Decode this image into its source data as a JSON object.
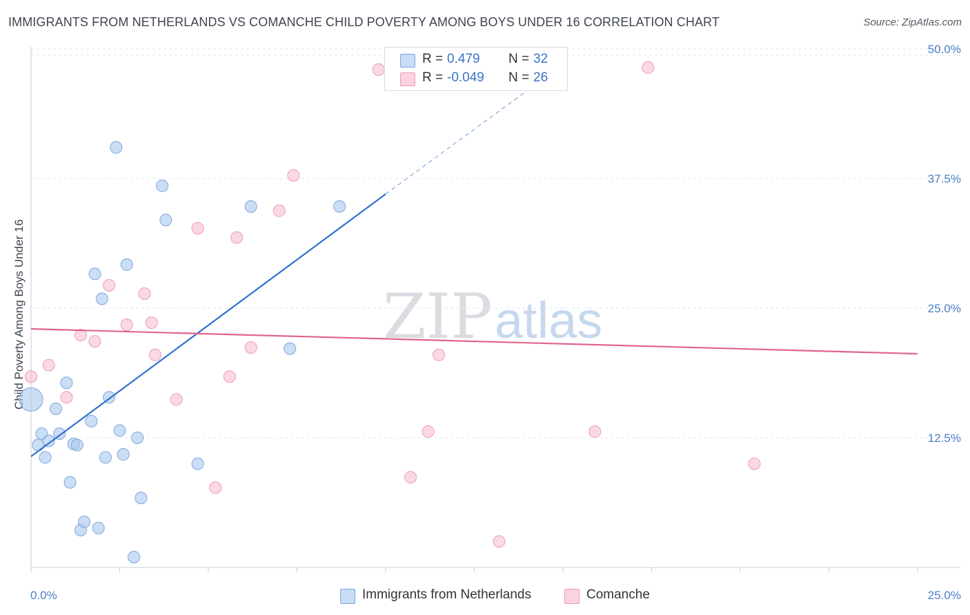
{
  "title": "IMMIGRANTS FROM NETHERLANDS VS COMANCHE CHILD POVERTY AMONG BOYS UNDER 16 CORRELATION CHART",
  "source": "Source: ZipAtlas.com",
  "watermark": {
    "zip": "ZIP",
    "atlas": "atlas"
  },
  "legend_top": {
    "rows": [
      {
        "r_label": "R =",
        "r_value": "0.479",
        "n_label": "N =",
        "n_value": "32",
        "color": "#aac8ee"
      },
      {
        "r_label": "R =",
        "r_value": "-0.049",
        "n_label": "N =",
        "n_value": "26",
        "color": "#f7bfd0"
      }
    ]
  },
  "legend_bottom": [
    {
      "label": "Immigrants from Netherlands",
      "color": "#aac8ee"
    },
    {
      "label": "Comanche",
      "color": "#f7bfd0"
    }
  ],
  "colors": {
    "blue_fill": "#aac8ee",
    "blue_stroke": "#7aa6dd",
    "blue_line": "#2f6fcf",
    "pink_fill": "#f7bfd0",
    "pink_stroke": "#ef9ab4",
    "pink_line": "#e0648c",
    "grid": "#e3e6ea",
    "tick_text": "#4a7fc8"
  },
  "chart_data": {
    "type": "scatter",
    "title": "IMMIGRANTS FROM NETHERLANDS VS COMANCHE CHILD POVERTY AMONG BOYS UNDER 16 CORRELATION CHART",
    "xlabel": "",
    "ylabel": "Child Poverty Among Boys Under 16",
    "xlim": [
      0,
      25
    ],
    "ylim": [
      0,
      50
    ],
    "x_tick_labels": [
      "0.0%",
      "25.0%"
    ],
    "y_ticks": [
      12.5,
      25.0,
      37.5,
      50.0
    ],
    "y_tick_labels": [
      "12.5%",
      "25.0%",
      "37.5%",
      "50.0%"
    ],
    "grid": "horizontal dashed",
    "series": [
      {
        "name": "Immigrants from Netherlands",
        "points": [
          {
            "x": 0.0,
            "y": 16.2,
            "big": true
          },
          {
            "x": 0.2,
            "y": 11.8
          },
          {
            "x": 0.3,
            "y": 12.9
          },
          {
            "x": 0.4,
            "y": 10.6
          },
          {
            "x": 0.5,
            "y": 12.2
          },
          {
            "x": 0.7,
            "y": 15.3
          },
          {
            "x": 0.8,
            "y": 12.9
          },
          {
            "x": 1.0,
            "y": 17.8
          },
          {
            "x": 1.1,
            "y": 8.2
          },
          {
            "x": 1.2,
            "y": 11.9
          },
          {
            "x": 1.3,
            "y": 11.8
          },
          {
            "x": 1.4,
            "y": 3.6
          },
          {
            "x": 1.5,
            "y": 4.4
          },
          {
            "x": 1.7,
            "y": 14.1
          },
          {
            "x": 1.8,
            "y": 28.3
          },
          {
            "x": 1.9,
            "y": 3.8
          },
          {
            "x": 2.0,
            "y": 25.9
          },
          {
            "x": 2.1,
            "y": 10.6
          },
          {
            "x": 2.2,
            "y": 16.4
          },
          {
            "x": 2.4,
            "y": 40.5
          },
          {
            "x": 2.5,
            "y": 13.2
          },
          {
            "x": 2.6,
            "y": 10.9
          },
          {
            "x": 2.7,
            "y": 29.2
          },
          {
            "x": 2.9,
            "y": 1.0
          },
          {
            "x": 3.0,
            "y": 12.5
          },
          {
            "x": 3.1,
            "y": 6.7
          },
          {
            "x": 3.7,
            "y": 36.8
          },
          {
            "x": 3.8,
            "y": 33.5
          },
          {
            "x": 4.7,
            "y": 10.0
          },
          {
            "x": 6.2,
            "y": 34.8
          },
          {
            "x": 7.3,
            "y": 21.1
          },
          {
            "x": 8.7,
            "y": 34.8
          }
        ],
        "trend": {
          "x": [
            0,
            10.0,
            15.0
          ],
          "y": [
            10.7,
            36.0,
            48.5
          ],
          "dashed_from_x": 10.0
        }
      },
      {
        "name": "Comanche",
        "points": [
          {
            "x": 0.0,
            "y": 18.4
          },
          {
            "x": 0.5,
            "y": 19.5
          },
          {
            "x": 1.0,
            "y": 16.4
          },
          {
            "x": 1.4,
            "y": 22.4
          },
          {
            "x": 1.8,
            "y": 21.8
          },
          {
            "x": 2.2,
            "y": 27.2
          },
          {
            "x": 2.7,
            "y": 23.4
          },
          {
            "x": 3.2,
            "y": 26.4
          },
          {
            "x": 3.4,
            "y": 23.6
          },
          {
            "x": 3.5,
            "y": 20.5
          },
          {
            "x": 4.1,
            "y": 16.2
          },
          {
            "x": 4.7,
            "y": 32.7
          },
          {
            "x": 5.2,
            "y": 7.7
          },
          {
            "x": 5.6,
            "y": 18.4
          },
          {
            "x": 5.8,
            "y": 31.8
          },
          {
            "x": 6.2,
            "y": 21.2
          },
          {
            "x": 7.0,
            "y": 34.4
          },
          {
            "x": 7.4,
            "y": 37.8
          },
          {
            "x": 9.8,
            "y": 48.0
          },
          {
            "x": 10.7,
            "y": 8.7
          },
          {
            "x": 11.2,
            "y": 13.1
          },
          {
            "x": 11.5,
            "y": 20.5
          },
          {
            "x": 13.2,
            "y": 2.5
          },
          {
            "x": 15.9,
            "y": 13.1
          },
          {
            "x": 17.4,
            "y": 48.2
          },
          {
            "x": 20.4,
            "y": 10.0
          }
        ],
        "trend": {
          "x": [
            0,
            25.0
          ],
          "y": [
            23.0,
            20.6
          ]
        }
      }
    ]
  }
}
